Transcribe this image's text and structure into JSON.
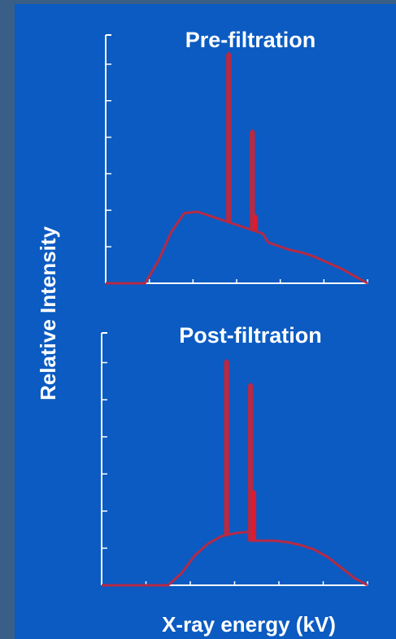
{
  "chart_data": [
    {
      "type": "line",
      "title": "Pre-filtration",
      "x": [
        0,
        5,
        10,
        15,
        20,
        25,
        30,
        35,
        40,
        45,
        50,
        55,
        60,
        62,
        70,
        75,
        80,
        85,
        90,
        95,
        100
      ],
      "y": [
        0,
        0,
        0,
        0,
        15,
        35,
        48,
        49,
        46,
        43,
        40,
        37,
        34,
        28,
        23,
        21,
        18,
        14,
        10,
        5,
        0
      ],
      "peaks": [
        {
          "x": 47,
          "y": 158
        },
        {
          "x": 56,
          "y": 105
        },
        {
          "x": 57,
          "y": 47
        }
      ],
      "ylim": [
        0,
        170
      ]
    },
    {
      "type": "line",
      "title": "Post-filtration",
      "x": [
        0,
        5,
        10,
        15,
        20,
        25,
        30,
        35,
        40,
        45,
        50,
        55,
        56,
        60,
        65,
        70,
        75,
        80,
        85,
        90,
        95,
        100
      ],
      "y": [
        0,
        0,
        0,
        0,
        0,
        0,
        8,
        20,
        28,
        33,
        35,
        36,
        30,
        30,
        30,
        29,
        27,
        24,
        19,
        12,
        5,
        0
      ],
      "peaks": [
        {
          "x": 47,
          "y": 152
        },
        {
          "x": 56,
          "y": 136
        },
        {
          "x": 57,
          "y": 64
        }
      ],
      "ylim": [
        0,
        170
      ]
    }
  ],
  "labels": {
    "ylabel": "Relative Intensity",
    "xlabel": "X-ray energy (kV)"
  },
  "colors": {
    "background": "#0b5bc2",
    "frame": "#3a5f86",
    "curve": "#b52a45",
    "peak_fill": "#e01b2a",
    "axis": "#ffffff"
  }
}
